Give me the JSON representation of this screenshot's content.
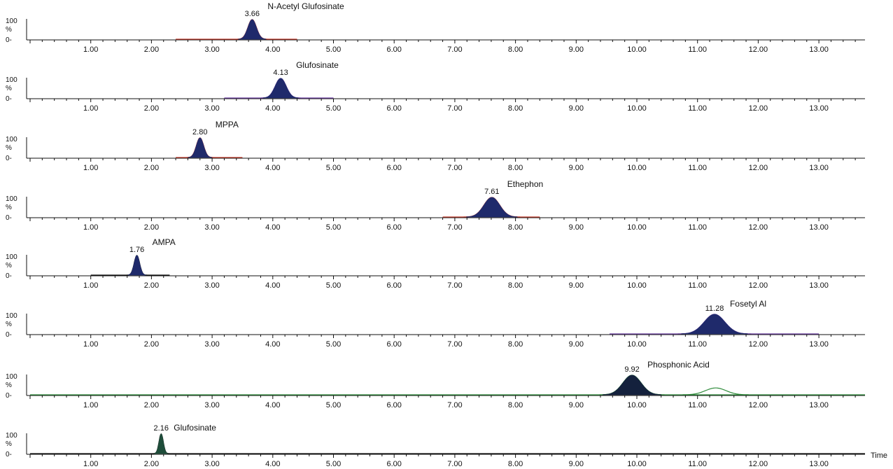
{
  "chart_data": [
    {
      "type": "line",
      "compound": "N-Acetyl Glufosinate",
      "peak_rt": "3.66",
      "peak": {
        "rt": 3.66,
        "width": 0.07,
        "height": 100,
        "fill": true
      },
      "window": [
        2.4,
        4.4
      ],
      "trace_color": "#c0392b",
      "fill_color": "#1f2a6b",
      "y_ticks": [
        "100",
        "%",
        "0-"
      ],
      "ylim": [
        0,
        100
      ],
      "xlim": [
        0.0,
        14.1
      ],
      "x_tick_labels": [
        "1.00",
        "2.00",
        "3.00",
        "4.00",
        "5.00",
        "6.00",
        "7.00",
        "8.00",
        "9.00",
        "10.00",
        "11.00",
        "12.00",
        "13.00"
      ]
    },
    {
      "type": "line",
      "compound": "Glufosinate",
      "peak_rt": "4.13",
      "peak": {
        "rt": 4.13,
        "width": 0.09,
        "height": 100,
        "fill": true
      },
      "window": [
        3.2,
        5.0
      ],
      "trace_color": "#6b3fa0",
      "fill_color": "#1f2a6b",
      "y_ticks": [
        "100",
        "%",
        "0-"
      ],
      "ylim": [
        0,
        100
      ],
      "xlim": [
        0.0,
        14.1
      ],
      "x_tick_labels": [
        "1.00",
        "2.00",
        "3.00",
        "4.00",
        "5.00",
        "6.00",
        "7.00",
        "8.00",
        "9.00",
        "10.00",
        "11.00",
        "12.00",
        "13.00"
      ]
    },
    {
      "type": "line",
      "compound": "MPPA",
      "peak_rt": "2.80",
      "peak": {
        "rt": 2.8,
        "width": 0.06,
        "height": 100,
        "fill": true
      },
      "window": [
        2.4,
        3.5
      ],
      "trace_color": "#c0392b",
      "fill_color": "#1f2a6b",
      "y_ticks": [
        "100",
        "%",
        "0-"
      ],
      "ylim": [
        0,
        100
      ],
      "xlim": [
        0.0,
        14.1
      ],
      "x_tick_labels": [
        "1.00",
        "2.00",
        "3.00",
        "4.00",
        "5.00",
        "6.00",
        "7.00",
        "8.00",
        "9.00",
        "10.00",
        "11.00",
        "12.00",
        "13.00"
      ]
    },
    {
      "type": "line",
      "compound": "Ethephon",
      "peak_rt": "7.61",
      "peak": {
        "rt": 7.61,
        "width": 0.13,
        "height": 100,
        "fill": true
      },
      "window": [
        6.8,
        8.4
      ],
      "trace_color": "#c0392b",
      "fill_color": "#1f2a6b",
      "y_ticks": [
        "100",
        "%",
        "0-"
      ],
      "ylim": [
        0,
        100
      ],
      "xlim": [
        0.0,
        14.1
      ],
      "x_tick_labels": [
        "1.00",
        "2.00",
        "3.00",
        "4.00",
        "5.00",
        "6.00",
        "7.00",
        "8.00",
        "9.00",
        "10.00",
        "11.00",
        "12.00",
        "13.00"
      ]
    },
    {
      "type": "line",
      "compound": "AMPA",
      "peak_rt": "1.76",
      "peak": {
        "rt": 1.76,
        "width": 0.045,
        "height": 100,
        "fill": true
      },
      "window": [
        1.0,
        2.3
      ],
      "trace_color": "#111111",
      "fill_color": "#1f2a6b",
      "y_ticks": [
        "100",
        "%",
        "0-"
      ],
      "ylim": [
        0,
        100
      ],
      "xlim": [
        0.0,
        14.1
      ],
      "x_tick_labels": [
        "1.00",
        "2.00",
        "3.00",
        "4.00",
        "5.00",
        "6.00",
        "7.00",
        "8.00",
        "9.00",
        "10.00",
        "11.00",
        "12.00",
        "13.00"
      ]
    },
    {
      "type": "line",
      "compound": "Fosetyl Al",
      "peak_rt": "11.28",
      "peak": {
        "rt": 11.28,
        "width": 0.17,
        "height": 100,
        "fill": true
      },
      "window": [
        9.55,
        13.0
      ],
      "trace_color": "#6b3fa0",
      "fill_color": "#1f2a6b",
      "y_ticks": [
        "100",
        "%",
        "0-"
      ],
      "ylim": [
        0,
        100
      ],
      "xlim": [
        0.0,
        14.1
      ],
      "x_tick_labels": [
        "1.00",
        "2.00",
        "3.00",
        "4.00",
        "5.00",
        "6.00",
        "7.00",
        "8.00",
        "9.00",
        "10.00",
        "11.00",
        "12.00",
        "13.00"
      ]
    },
    {
      "type": "line",
      "compound": "Phosphonic Acid",
      "peak_rt": "9.92",
      "peak": {
        "rt": 9.92,
        "width": 0.15,
        "height": 100,
        "fill": true
      },
      "secondary_peak": {
        "rt": 11.3,
        "width": 0.17,
        "height": 35
      },
      "window": [
        0.0,
        14.1
      ],
      "trace_color": "#2e8b3a",
      "fill_color": "#14213d",
      "y_ticks": [
        "100",
        "%",
        "0-"
      ],
      "ylim": [
        0,
        100
      ],
      "xlim": [
        0.0,
        14.1
      ],
      "x_tick_labels": [
        "1.00",
        "2.00",
        "3.00",
        "4.00",
        "5.00",
        "6.00",
        "7.00",
        "8.00",
        "9.00",
        "10.00",
        "11.00",
        "12.00",
        "13.00"
      ]
    },
    {
      "type": "line",
      "compound": "Glufosinate",
      "peak_rt": "2.16",
      "peak": {
        "rt": 2.16,
        "width": 0.035,
        "height": 100,
        "fill": true
      },
      "window": [
        0.0,
        14.1
      ],
      "trace_color": "#111111",
      "fill_color": "#1e4d3a",
      "y_ticks": [
        "100",
        "%",
        "0-"
      ],
      "ylim": [
        0,
        100
      ],
      "xlim": [
        0.0,
        14.1
      ],
      "x_tick_labels": [
        "1.00",
        "2.00",
        "3.00",
        "4.00",
        "5.00",
        "6.00",
        "7.00",
        "8.00",
        "9.00",
        "10.00",
        "11.00",
        "12.00",
        "13.00"
      ]
    }
  ],
  "x_axis_label": "Time"
}
